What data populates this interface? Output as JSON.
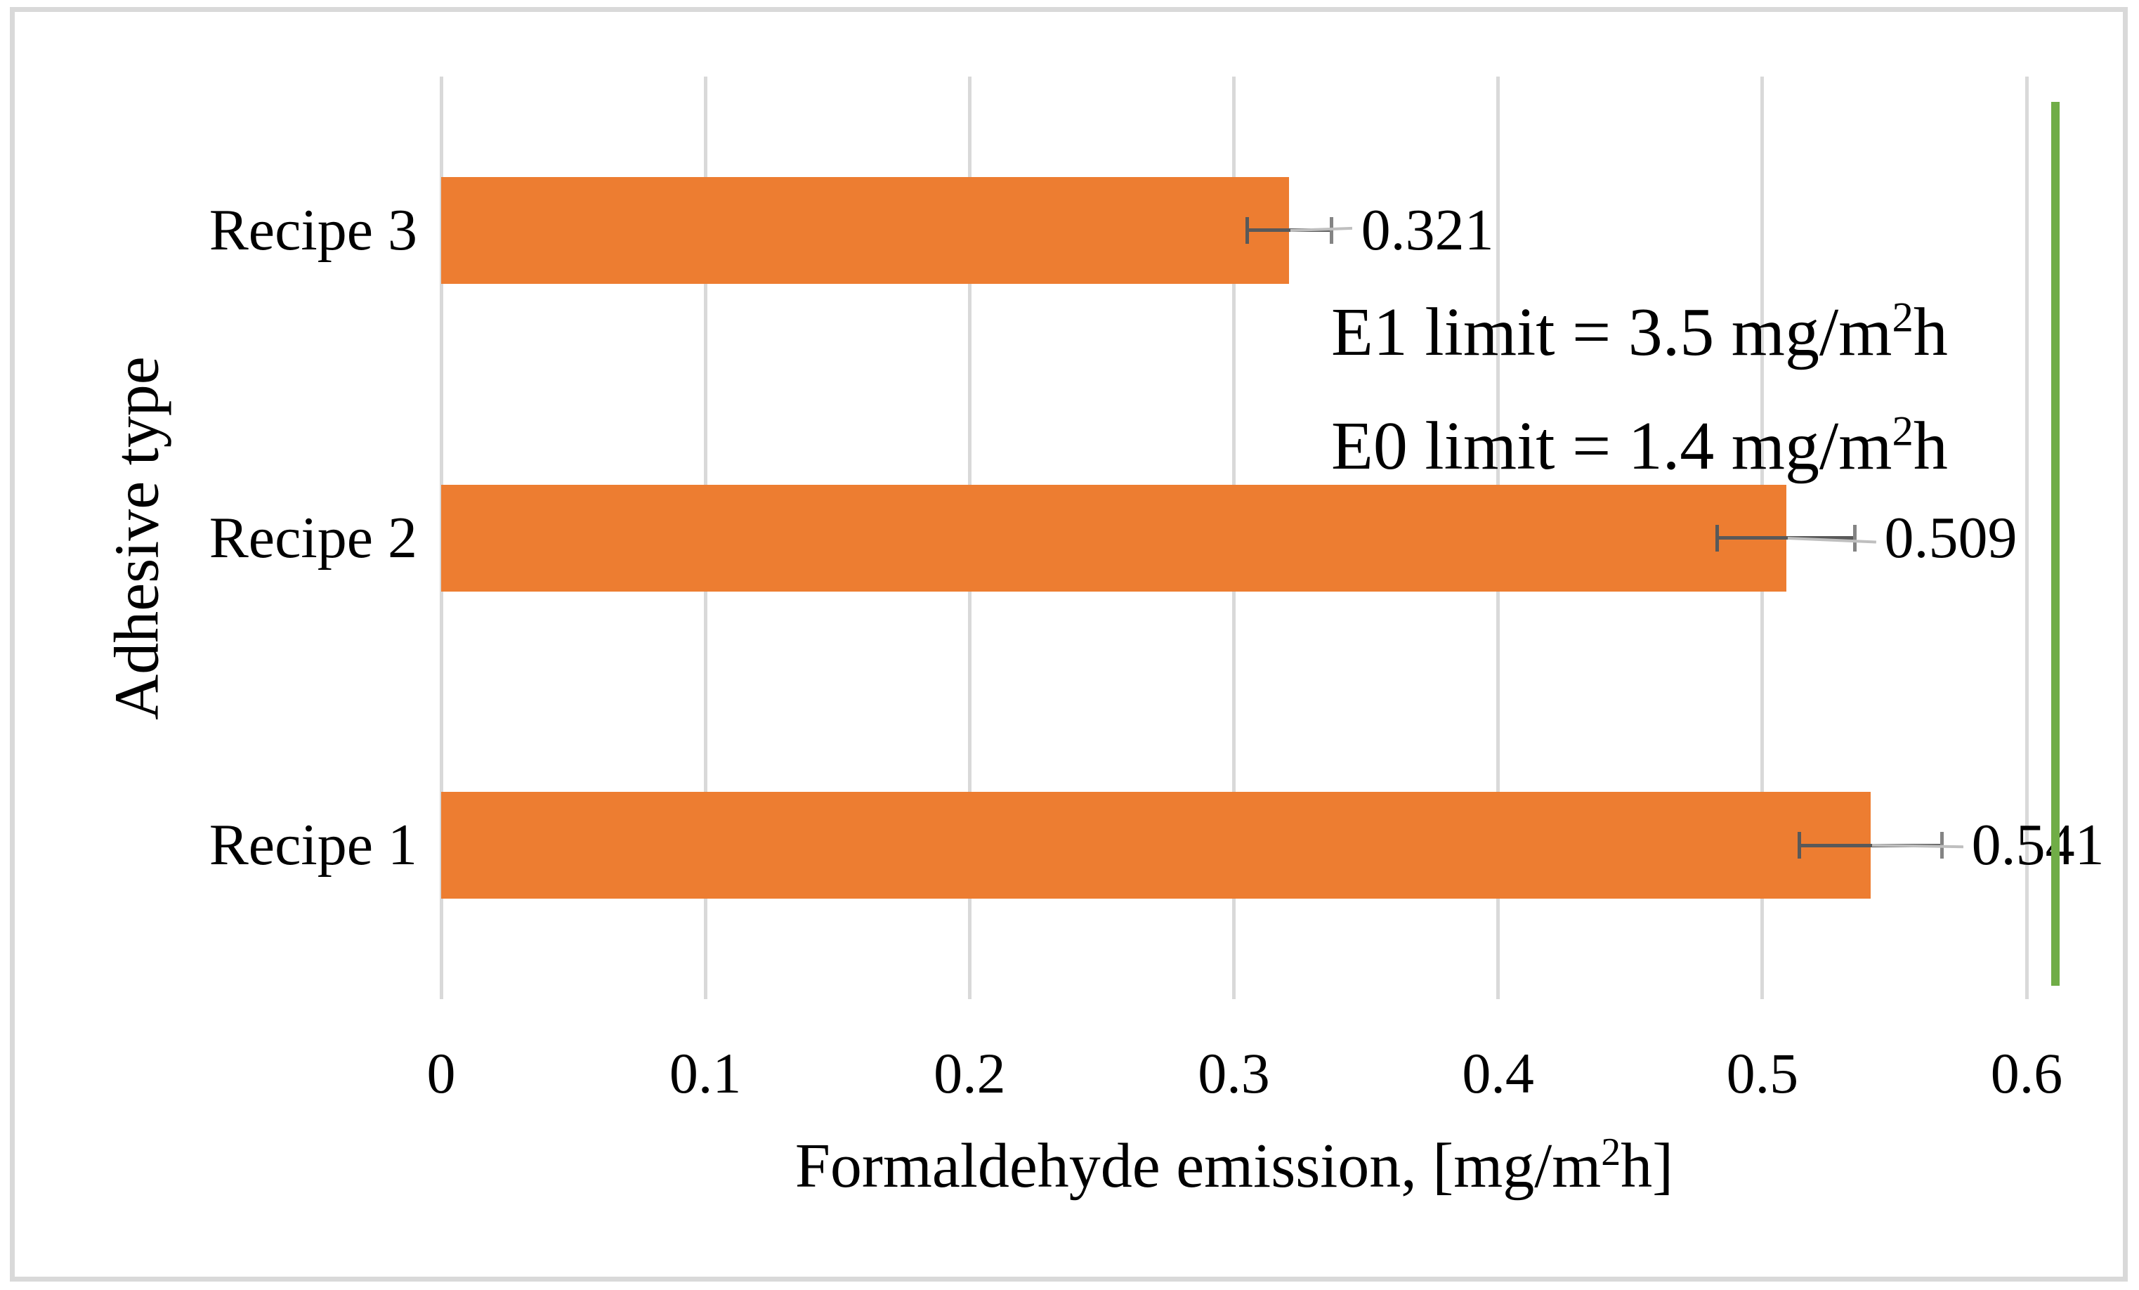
{
  "chart_data": {
    "type": "bar",
    "orientation": "horizontal",
    "categories": [
      "Recipe 3",
      "Recipe 2",
      "Recipe 1"
    ],
    "values": [
      0.321,
      0.509,
      0.541
    ],
    "errors": [
      0.016,
      0.026,
      0.027
    ],
    "data_labels": [
      "0.321",
      "0.509",
      "0.541"
    ],
    "ylabel": "Adhesive type",
    "xlabel": {
      "text": "Formaldehyde emission, [mg/m²h]",
      "base": "Formaldehyde emission, [mg/m",
      "sup": "2",
      "tail": "h]"
    },
    "x_ticks": [
      "0",
      "0.1",
      "0.2",
      "0.3",
      "0.4",
      "0.5",
      "0.6"
    ],
    "xlim": [
      0,
      0.6
    ],
    "grid": "vertical-gridlines",
    "legend": "none",
    "reference_line": {
      "value": 0.611,
      "color": "#70AD47"
    },
    "annotations": [
      {
        "text": "E1 limit = 3.5 mg/m²h",
        "base": "E1 limit = 3.5 mg/m",
        "sup": "2",
        "tail": "h"
      },
      {
        "text": "E0 limit = 1.4 mg/m²h",
        "base": "E0 limit = 1.4 mg/m",
        "sup": "2",
        "tail": "h"
      }
    ],
    "colors": {
      "bar": "#ED7D31",
      "reference_line": "#70AD47",
      "gridline": "#D9D9D9",
      "error_bar": "#595959",
      "error_cap_outer": "#848484",
      "leader_line": "#BFBFBF",
      "border": "#D9D9D9",
      "text": "#000000"
    }
  }
}
